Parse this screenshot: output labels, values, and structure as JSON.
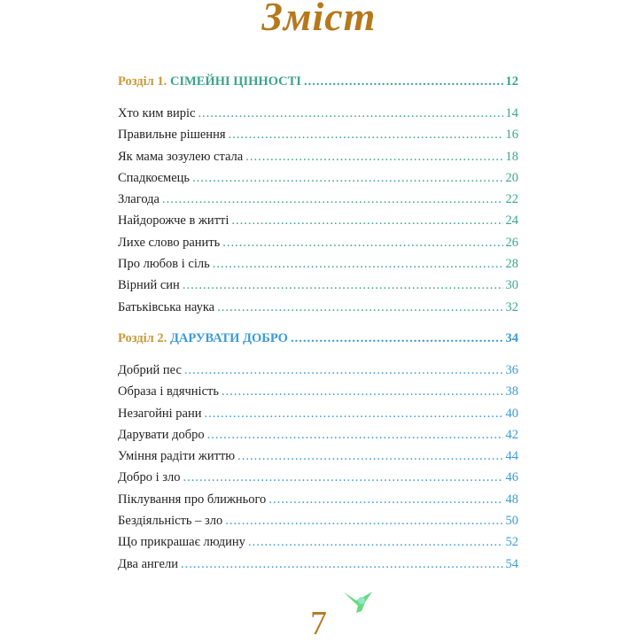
{
  "title": "Зміст",
  "sections": [
    {
      "label": "Розділ 1.",
      "name": "СІМЕЙНІ ЦІННОСТІ",
      "page": "12",
      "color": "#3aa58a",
      "items": [
        {
          "title": "Хто ким виріс",
          "page": "14"
        },
        {
          "title": "Правильне рішення",
          "page": "16"
        },
        {
          "title": "Як мама зозулею стала",
          "page": "18"
        },
        {
          "title": "Спадкоємець",
          "page": "20"
        },
        {
          "title": "Злагода",
          "page": "22"
        },
        {
          "title": "Найдорожче в житті",
          "page": "24"
        },
        {
          "title": "Лихе слово ранить",
          "page": "26"
        },
        {
          "title": "Про любов і сіль",
          "page": "28"
        },
        {
          "title": "Вірний син",
          "page": "30"
        },
        {
          "title": "Батьківська наука",
          "page": "32"
        }
      ]
    },
    {
      "label": "Розділ 2.",
      "name": "ДАРУВАТИ ДОБРО",
      "page": "34",
      "color": "#3a9ad9",
      "items": [
        {
          "title": "Добрий пес",
          "page": "36"
        },
        {
          "title": "Образа і вдячність",
          "page": "38"
        },
        {
          "title": "Незагойні рани",
          "page": "40"
        },
        {
          "title": "Дарувати добро",
          "page": "42"
        },
        {
          "title": "Уміння радіти життю",
          "page": "44"
        },
        {
          "title": "Добро і зло",
          "page": "46"
        },
        {
          "title": "Піклування про ближнього",
          "page": "48"
        },
        {
          "title": "Бездіяльність – зло",
          "page": "50"
        },
        {
          "title": "Що прикрашає людину",
          "page": "52"
        },
        {
          "title": "Два ангели",
          "page": "54"
        }
      ]
    }
  ],
  "page_number": "7",
  "decoration": "green-bird-icon"
}
